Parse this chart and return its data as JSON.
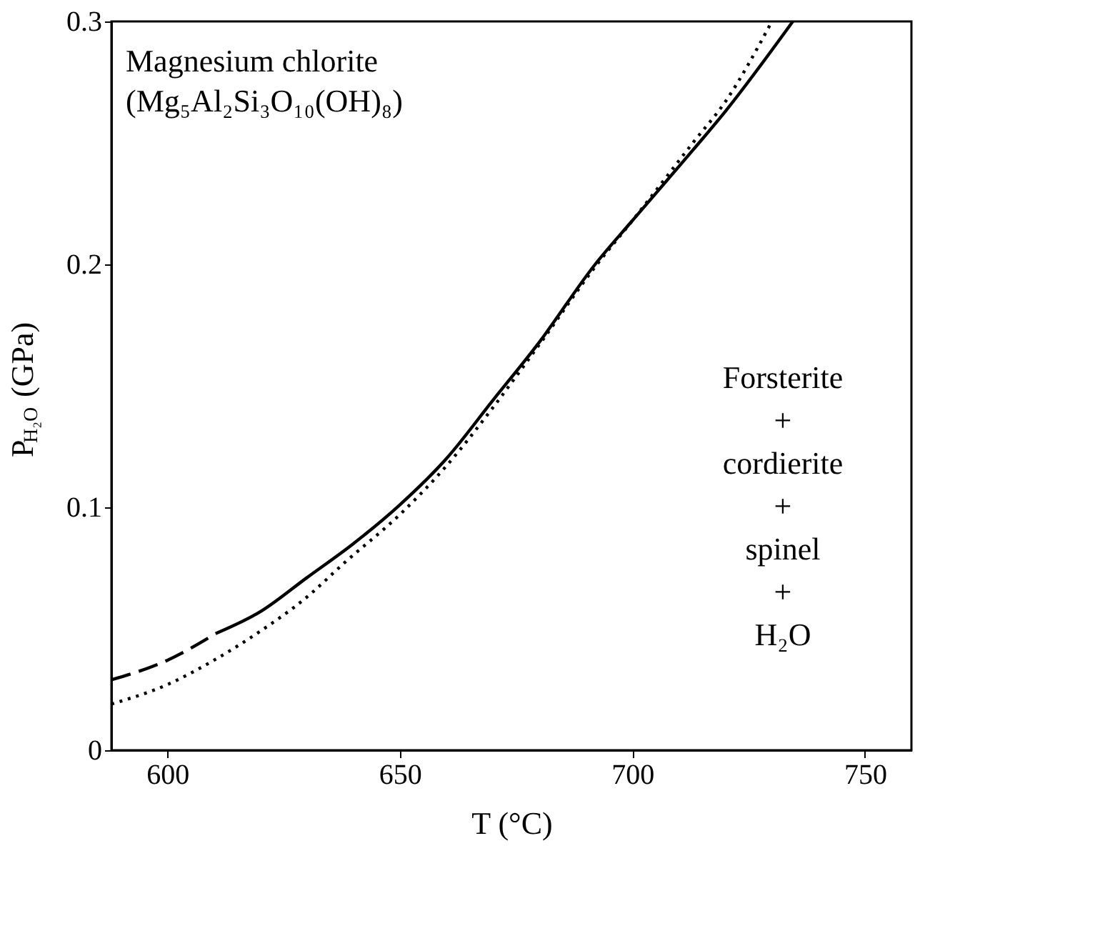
{
  "chart_data": {
    "type": "line",
    "xlabel": "T (°C)",
    "ylabel": "P$_{H₂O}$ (GPa)",
    "xlim": [
      588,
      760
    ],
    "xticks": [
      600,
      650,
      700,
      750
    ],
    "ylim": [
      0,
      0.3
    ],
    "yticks": [
      0,
      0.1,
      0.2,
      0.3
    ],
    "grid": false,
    "marker": "none",
    "series": [
      {
        "color": "#000000",
        "line_style": "dashed",
        "x": [
          588,
          600,
          610.4
        ],
        "values": [
          0.029,
          0.037,
          0.048
        ]
      },
      {
        "color": "#000000",
        "line_style": "solid",
        "x": [
          610.4,
          620,
          630,
          640,
          650,
          660,
          670,
          680,
          692,
          700,
          713,
          720,
          734.5
        ],
        "values": [
          0.048,
          0.057,
          0.071,
          0.085,
          0.101,
          0.12,
          0.144,
          0.168,
          0.2,
          0.218,
          0.247,
          0.263,
          0.3
        ]
      },
      {
        "color": "#000000",
        "line_style": "dotted",
        "x": [
          588,
          600,
          610,
          620,
          630,
          638,
          650,
          660,
          670,
          680,
          692,
          700,
          713,
          720,
          730
        ],
        "values": [
          0.019,
          0.027,
          0.037,
          0.049,
          0.063,
          0.077,
          0.097,
          0.117,
          0.141,
          0.167,
          0.199,
          0.218,
          0.25,
          0.267,
          0.3
        ]
      }
    ],
    "annotations": [
      "Magnesium chlorite",
      "(Mg₅Al₂Si₃O₁₀(OH)₈)",
      "Forsterite\n+\ncordierite\n+\nspinel\n+\nH₂O"
    ]
  }
}
